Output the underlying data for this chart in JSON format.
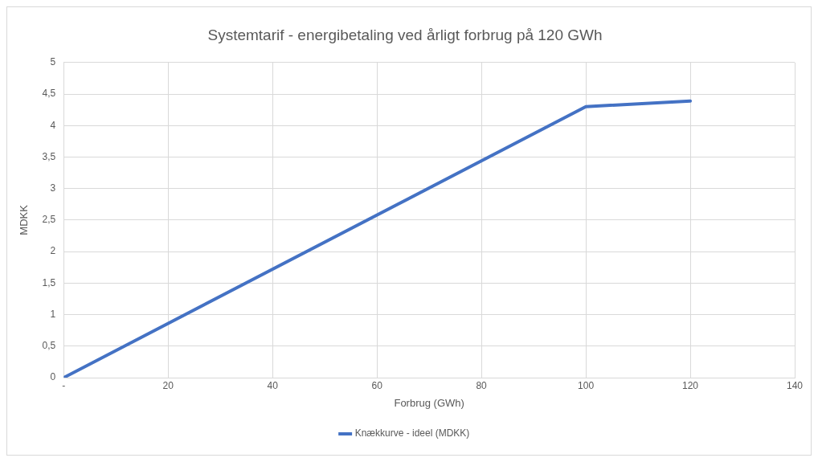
{
  "chart_data": {
    "type": "line",
    "title": "Systemtarif - energibetaling ved årligt forbrug på 120 GWh",
    "xlabel": "Forbrug (GWh)",
    "ylabel": "MDKK",
    "x": [
      0,
      100,
      120
    ],
    "series": [
      {
        "name": "Knækkurve - ideel (MDKK)",
        "color": "#4472c4",
        "values": [
          0,
          4.3,
          4.39
        ]
      }
    ],
    "xlim": [
      0,
      140
    ],
    "xticks": [
      {
        "value": 0,
        "label": "-"
      },
      20,
      40,
      60,
      80,
      100,
      120,
      140
    ],
    "ylim": [
      0,
      5
    ],
    "yticks": [
      0,
      {
        "value": 0.5,
        "label": "0,5"
      },
      1,
      {
        "value": 1.5,
        "label": "1,5"
      },
      2,
      {
        "value": 2.5,
        "label": "2,5"
      },
      3,
      {
        "value": 3.5,
        "label": "3,5"
      },
      4,
      {
        "value": 4.5,
        "label": "4,5"
      },
      5
    ],
    "grid": true,
    "legend": "bottom",
    "marker": "none",
    "line_style": "solid"
  }
}
